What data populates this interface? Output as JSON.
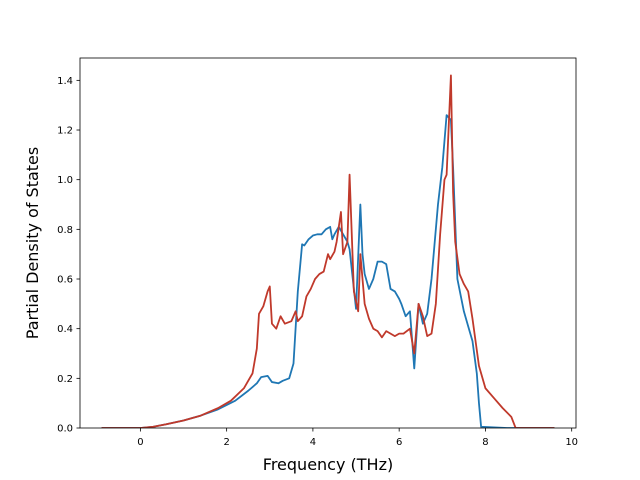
{
  "chart_data": {
    "type": "line",
    "xlabel": "Frequency (THz)",
    "ylabel": "Partial Density of States",
    "xlim": [
      -1.4,
      10.1
    ],
    "ylim": [
      0.0,
      1.49
    ],
    "xticks": [
      "0",
      "2",
      "4",
      "6",
      "8",
      "10"
    ],
    "yticks": [
      "0.0",
      "0.2",
      "0.4",
      "0.6",
      "0.8",
      "1.0",
      "1.2",
      "1.4"
    ],
    "grid": false,
    "legend": "none",
    "series": [
      {
        "color": "#1f77b4",
        "x": [
          -0.9,
          0.0,
          0.3,
          0.6,
          1.0,
          1.4,
          1.8,
          2.2,
          2.5,
          2.7,
          2.8,
          2.95,
          3.05,
          3.2,
          3.3,
          3.45,
          3.55,
          3.65,
          3.75,
          3.8,
          3.9,
          4.0,
          4.1,
          4.2,
          4.3,
          4.4,
          4.45,
          4.5,
          4.6,
          4.7,
          4.8,
          4.85,
          5.0,
          5.1,
          5.15,
          5.2,
          5.3,
          5.4,
          5.5,
          5.6,
          5.7,
          5.8,
          5.9,
          6.0,
          6.05,
          6.15,
          6.25,
          6.35,
          6.45,
          6.55,
          6.65,
          6.75,
          6.9,
          7.0,
          7.1,
          7.2,
          7.25,
          7.35,
          7.5,
          7.6,
          7.7,
          7.8,
          7.85,
          7.9,
          8.5,
          8.7,
          9.6
        ],
        "y": [
          0.0,
          0.0,
          0.005,
          0.015,
          0.03,
          0.05,
          0.075,
          0.11,
          0.15,
          0.18,
          0.205,
          0.21,
          0.185,
          0.18,
          0.19,
          0.2,
          0.26,
          0.55,
          0.74,
          0.735,
          0.76,
          0.775,
          0.78,
          0.78,
          0.8,
          0.81,
          0.76,
          0.78,
          0.81,
          0.78,
          0.75,
          0.72,
          0.48,
          0.9,
          0.7,
          0.62,
          0.56,
          0.6,
          0.67,
          0.67,
          0.66,
          0.56,
          0.55,
          0.52,
          0.5,
          0.45,
          0.47,
          0.24,
          0.5,
          0.42,
          0.46,
          0.6,
          0.9,
          1.05,
          1.26,
          1.24,
          1.05,
          0.6,
          0.47,
          0.41,
          0.35,
          0.22,
          0.1,
          0.005,
          0.0,
          0.0,
          0.0
        ]
      },
      {
        "color": "#c0392b",
        "x": [
          -0.9,
          0.0,
          0.3,
          0.6,
          1.0,
          1.4,
          1.8,
          2.1,
          2.4,
          2.6,
          2.7,
          2.75,
          2.85,
          2.95,
          3.0,
          3.05,
          3.15,
          3.25,
          3.35,
          3.5,
          3.6,
          3.65,
          3.75,
          3.85,
          3.95,
          4.05,
          4.15,
          4.25,
          4.35,
          4.4,
          4.5,
          4.55,
          4.65,
          4.7,
          4.8,
          4.85,
          4.95,
          5.05,
          5.1,
          5.2,
          5.3,
          5.4,
          5.5,
          5.6,
          5.7,
          5.8,
          5.9,
          6.0,
          6.1,
          6.25,
          6.35,
          6.45,
          6.55,
          6.65,
          6.75,
          6.85,
          6.95,
          7.05,
          7.1,
          7.2,
          7.25,
          7.3,
          7.4,
          7.5,
          7.6,
          7.7,
          7.85,
          8.0,
          8.2,
          8.4,
          8.6,
          8.7,
          9.6
        ],
        "y": [
          0.0,
          0.0,
          0.005,
          0.015,
          0.03,
          0.05,
          0.08,
          0.11,
          0.16,
          0.22,
          0.32,
          0.46,
          0.49,
          0.55,
          0.57,
          0.42,
          0.4,
          0.45,
          0.42,
          0.43,
          0.47,
          0.43,
          0.45,
          0.53,
          0.56,
          0.6,
          0.62,
          0.63,
          0.7,
          0.68,
          0.71,
          0.75,
          0.87,
          0.7,
          0.75,
          1.02,
          0.55,
          0.47,
          0.7,
          0.5,
          0.44,
          0.4,
          0.39,
          0.365,
          0.39,
          0.38,
          0.37,
          0.38,
          0.38,
          0.4,
          0.3,
          0.5,
          0.45,
          0.37,
          0.38,
          0.5,
          0.78,
          1.0,
          1.02,
          1.42,
          0.95,
          0.75,
          0.62,
          0.58,
          0.55,
          0.44,
          0.25,
          0.16,
          0.12,
          0.08,
          0.045,
          0.0,
          0.0
        ]
      }
    ]
  }
}
